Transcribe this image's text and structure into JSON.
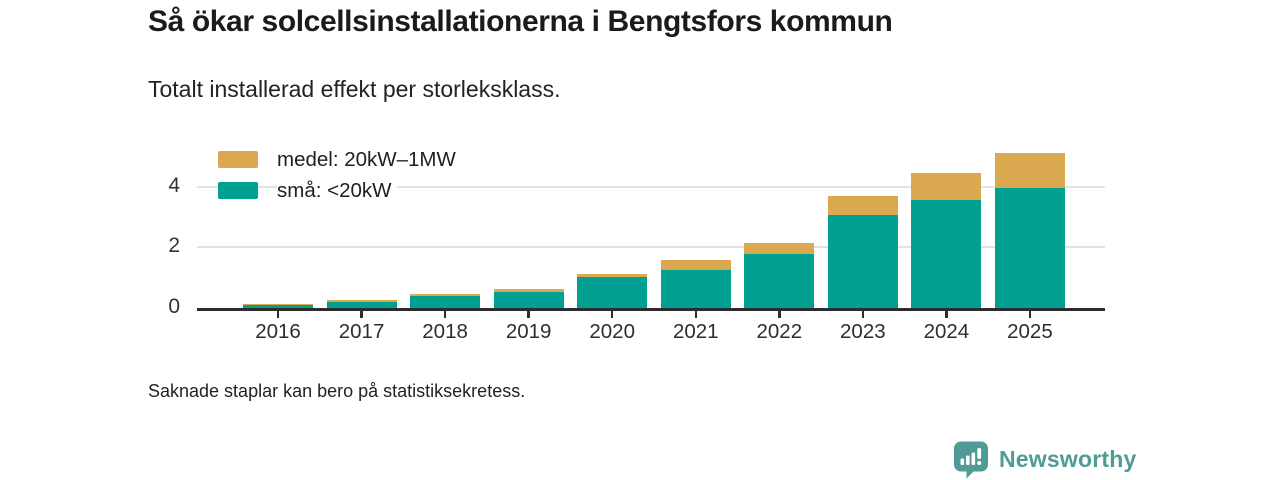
{
  "header": {
    "title": "Så ökar solcellsinstallationerna i Bengtsfors kommun",
    "subtitle": "Totalt installerad effekt per storleksklass."
  },
  "chart_data": {
    "type": "bar",
    "stacked": true,
    "categories": [
      "2016",
      "2017",
      "2018",
      "2019",
      "2020",
      "2021",
      "2022",
      "2023",
      "2024",
      "2025"
    ],
    "series": [
      {
        "name": "medel: 20kW–1MW",
        "color": "#DAA84E",
        "values": [
          0.03,
          0.04,
          0.06,
          0.08,
          0.09,
          0.33,
          0.38,
          0.63,
          0.88,
          1.15
        ]
      },
      {
        "name": "små: <20kW",
        "color": "#00A193",
        "values": [
          0.1,
          0.21,
          0.39,
          0.54,
          1.03,
          1.24,
          1.77,
          3.08,
          3.58,
          3.97
        ]
      }
    ],
    "title": "Så ökar solcellsinstallationerna i Bengtsfors kommun",
    "subtitle": "Totalt installerad effekt per storleksklass.",
    "xlabel": "",
    "ylabel": "",
    "yticks": [
      0,
      2,
      4
    ],
    "ylim": [
      0,
      5.55
    ],
    "grid": "horizontal",
    "legend_position": "top-left"
  },
  "footer": {
    "note": "Saknade staplar kan bero på statistiksekretess."
  },
  "branding": {
    "name": "Newsworthy",
    "color": "#4E9C95",
    "icon": "newsworthy-chart-bubble-icon"
  },
  "colors": {
    "axis": "#2d2d2d",
    "gridline": "#e3e3e3",
    "background": "#ffffff"
  }
}
